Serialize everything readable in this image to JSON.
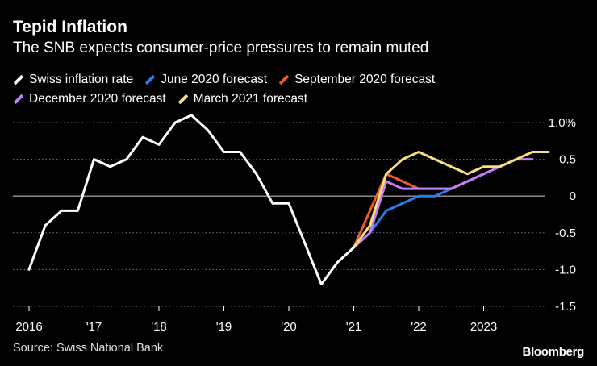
{
  "title": "Tepid Inflation",
  "subtitle": "The SNB expects consumer-price pressures to remain muted",
  "source": "Source: Swiss National Bank",
  "brand": "Bloomberg",
  "chart_data": {
    "type": "line",
    "ylim": [
      -1.5,
      1.0
    ],
    "xlim": [
      2016.0,
      2024.2
    ],
    "grid": true,
    "y_ticks": [
      {
        "value": 1.0,
        "label": "1.0%"
      },
      {
        "value": 0.5,
        "label": "0.5"
      },
      {
        "value": 0.0,
        "label": "0"
      },
      {
        "value": -0.5,
        "label": "-0.5"
      },
      {
        "value": -1.0,
        "label": "-1.0"
      },
      {
        "value": -1.5,
        "label": "-1.5"
      }
    ],
    "x_ticks": [
      {
        "value": 2016,
        "label": "2016"
      },
      {
        "value": 2017,
        "label": "'17"
      },
      {
        "value": 2018,
        "label": "'18"
      },
      {
        "value": 2019,
        "label": "'19"
      },
      {
        "value": 2020,
        "label": "'20"
      },
      {
        "value": 2021,
        "label": "'21"
      },
      {
        "value": 2022,
        "label": "'22"
      },
      {
        "value": 2023,
        "label": "2023"
      }
    ],
    "legend": "top",
    "series": [
      {
        "name": "Swiss inflation rate",
        "color": "#ffffff",
        "points": [
          [
            2016.0,
            -1.0
          ],
          [
            2016.25,
            -0.4
          ],
          [
            2016.5,
            -0.2
          ],
          [
            2016.75,
            -0.2
          ],
          [
            2017.0,
            0.5
          ],
          [
            2017.25,
            0.4
          ],
          [
            2017.5,
            0.5
          ],
          [
            2017.75,
            0.8
          ],
          [
            2018.0,
            0.7
          ],
          [
            2018.25,
            1.0
          ],
          [
            2018.5,
            1.1
          ],
          [
            2018.75,
            0.9
          ],
          [
            2019.0,
            0.6
          ],
          [
            2019.25,
            0.6
          ],
          [
            2019.5,
            0.3
          ],
          [
            2019.75,
            -0.1
          ],
          [
            2020.0,
            -0.1
          ],
          [
            2020.5,
            -1.2
          ],
          [
            2020.75,
            -0.9
          ],
          [
            2021.0,
            -0.7
          ]
        ]
      },
      {
        "name": "June 2020 forecast",
        "color": "#2f7be8",
        "points": [
          [
            2021.0,
            -0.7
          ],
          [
            2021.25,
            -0.5
          ],
          [
            2021.5,
            -0.2
          ],
          [
            2021.75,
            -0.1
          ],
          [
            2022.0,
            0.0
          ],
          [
            2022.25,
            0.0
          ],
          [
            2022.5,
            0.1
          ],
          [
            2022.75,
            0.2
          ],
          [
            2023.0,
            0.3
          ]
        ]
      },
      {
        "name": "September 2020 forecast",
        "color": "#ef5a2f",
        "points": [
          [
            2021.0,
            -0.7
          ],
          [
            2021.25,
            -0.2
          ],
          [
            2021.5,
            0.3
          ],
          [
            2021.75,
            0.2
          ],
          [
            2022.0,
            0.1
          ],
          [
            2022.25,
            0.1
          ],
          [
            2022.5,
            0.1
          ],
          [
            2022.75,
            0.2
          ],
          [
            2023.0,
            0.3
          ]
        ]
      },
      {
        "name": "December 2020 forecast",
        "color": "#c57ef7",
        "points": [
          [
            2021.0,
            -0.7
          ],
          [
            2021.25,
            -0.5
          ],
          [
            2021.5,
            0.2
          ],
          [
            2021.75,
            0.1
          ],
          [
            2022.0,
            0.1
          ],
          [
            2022.25,
            0.1
          ],
          [
            2022.5,
            0.1
          ],
          [
            2022.75,
            0.2
          ],
          [
            2023.0,
            0.3
          ],
          [
            2023.25,
            0.4
          ],
          [
            2023.5,
            0.5
          ],
          [
            2023.75,
            0.5
          ]
        ]
      },
      {
        "name": "March 2021 forecast",
        "color": "#f7df7c",
        "points": [
          [
            2021.0,
            -0.7
          ],
          [
            2021.25,
            -0.4
          ],
          [
            2021.5,
            0.3
          ],
          [
            2021.75,
            0.5
          ],
          [
            2022.0,
            0.6
          ],
          [
            2022.25,
            0.5
          ],
          [
            2022.5,
            0.4
          ],
          [
            2022.75,
            0.3
          ],
          [
            2023.0,
            0.4
          ],
          [
            2023.25,
            0.4
          ],
          [
            2023.5,
            0.5
          ],
          [
            2023.75,
            0.6
          ],
          [
            2024.0,
            0.6
          ]
        ]
      }
    ]
  }
}
